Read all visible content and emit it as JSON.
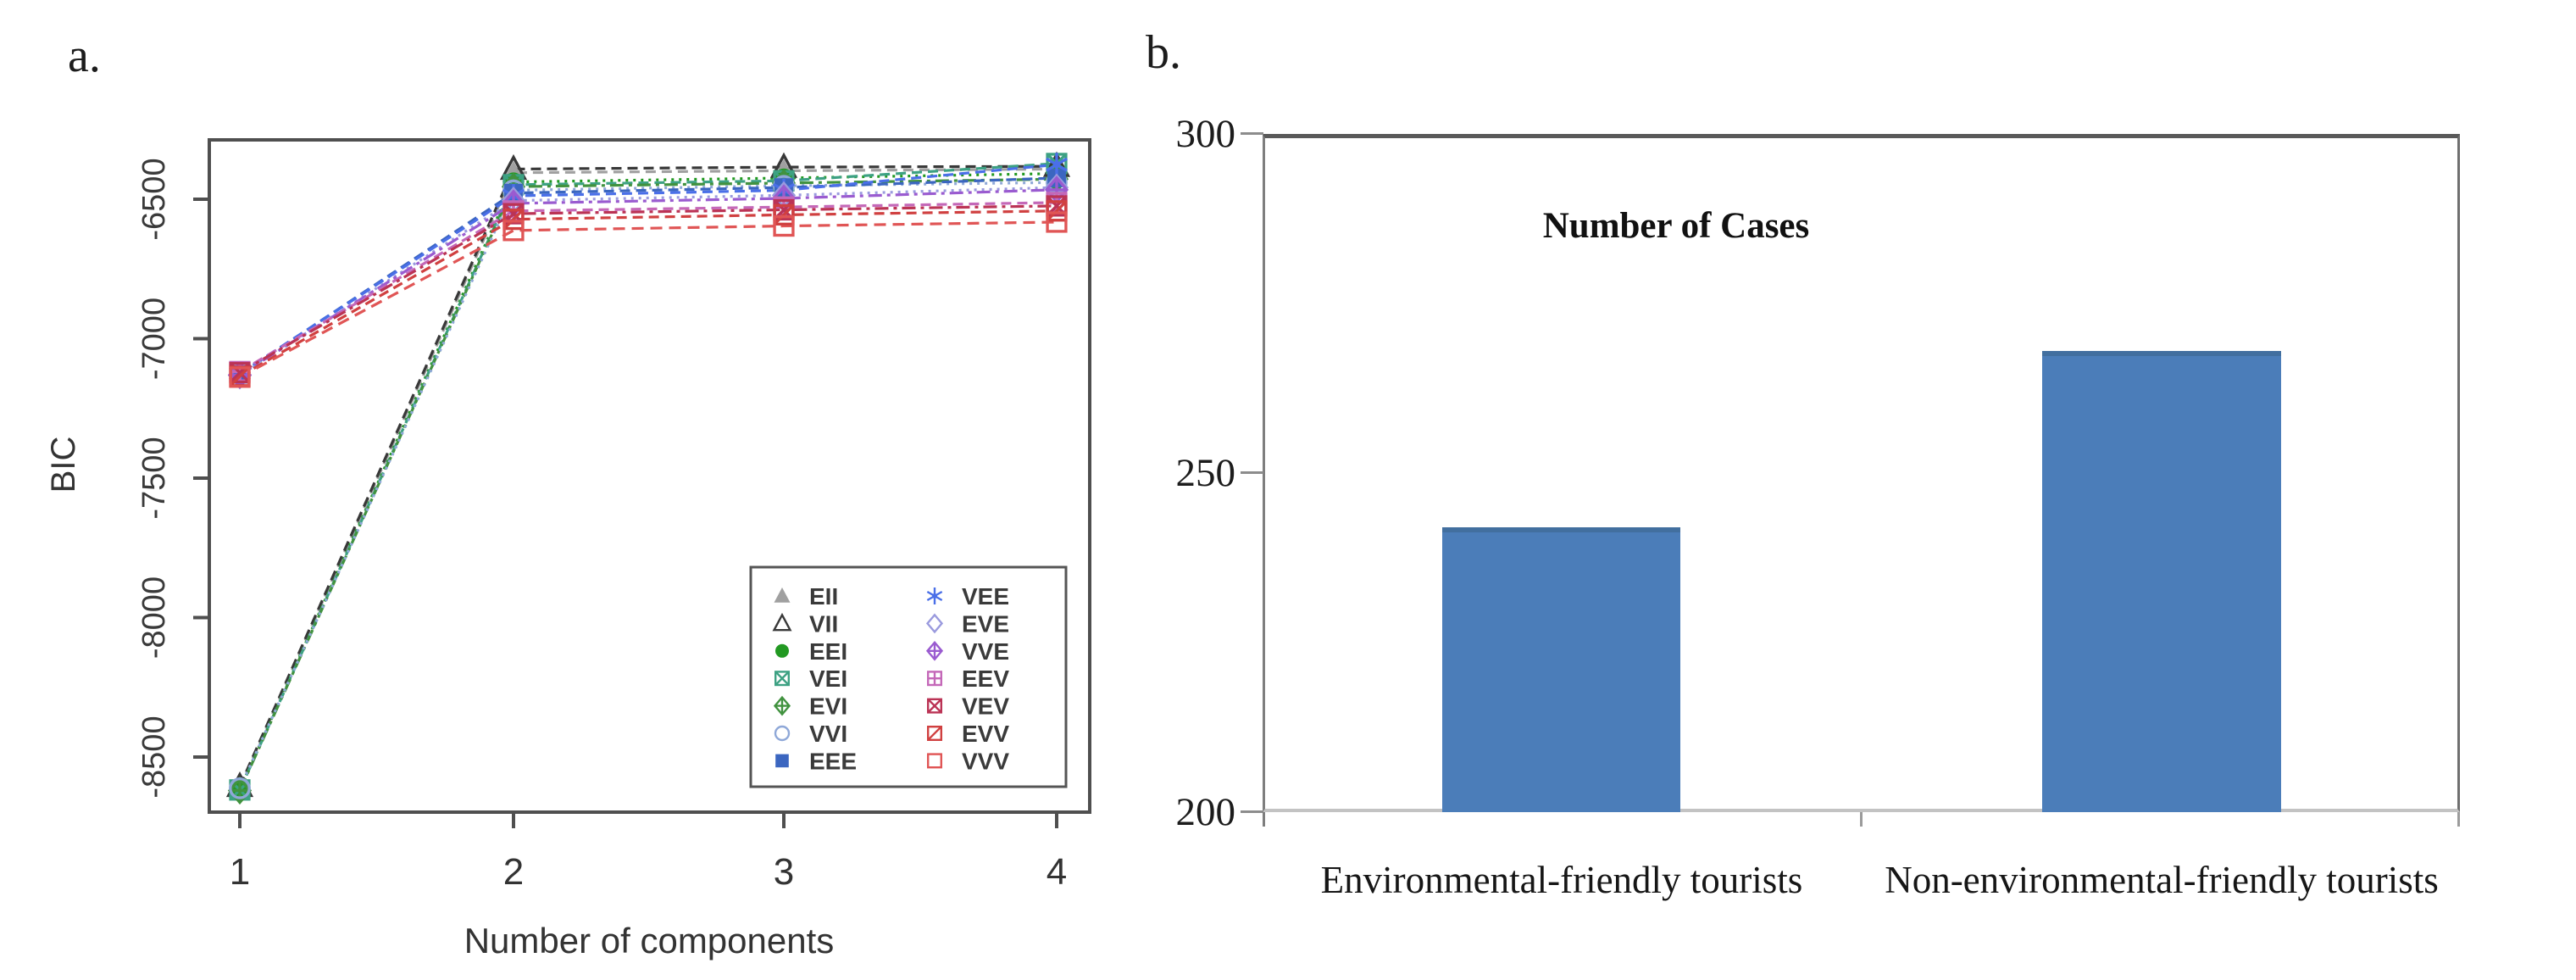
{
  "figure": {
    "background": "#ffffff",
    "panels": [
      "a",
      "b"
    ]
  },
  "chart_data": [
    {
      "id": "bic-model-selection",
      "type": "line",
      "panel_label": "a.",
      "xlabel": "Number of components",
      "ylabel": "BIC",
      "x": [
        1,
        2,
        3,
        4
      ],
      "x_tick_labels": [
        "1",
        "2",
        "3",
        "4"
      ],
      "y_ticks": [
        -6500,
        -7000,
        -7500,
        -8000,
        -8500
      ],
      "ylim": [
        -8712,
        -6287
      ],
      "grid": false,
      "legend_position": "bottom-right",
      "legend_columns": 2,
      "series": [
        {
          "name": "EII",
          "marker": "triangle-filled",
          "color": "#a0a0a0",
          "dash": "12 7",
          "values": [
            -8610,
            -6405,
            -6398,
            -6392
          ]
        },
        {
          "name": "VII",
          "marker": "triangle-open",
          "color": "#383838",
          "dash": "12 7",
          "values": [
            -8605,
            -6392,
            -6385,
            -6382
          ]
        },
        {
          "name": "EEI",
          "marker": "circle-filled",
          "color": "#229922",
          "dash": "3 6",
          "values": [
            -8615,
            -6438,
            -6424,
            -6408
          ]
        },
        {
          "name": "VEI",
          "marker": "square-x",
          "color": "#3da183",
          "dash": "12 7",
          "values": [
            -8618,
            -6448,
            -6434,
            -6372
          ]
        },
        {
          "name": "EVI",
          "marker": "diamond-plus",
          "color": "#41923f",
          "dash": "16 6 4 6",
          "values": [
            -8620,
            -6455,
            -6442,
            -6428
          ]
        },
        {
          "name": "VVI",
          "marker": "circle-open",
          "color": "#8fa8d8",
          "dash": "3 6",
          "values": [
            -8612,
            -6468,
            -6452,
            -6440
          ]
        },
        {
          "name": "EEE",
          "marker": "square-filled",
          "color": "#3b66c0",
          "dash": "12 7",
          "values": [
            -7128,
            -6478,
            -6458,
            -6424
          ]
        },
        {
          "name": "VEE",
          "marker": "star6",
          "color": "#4a6fe8",
          "dash": "12 7",
          "values": [
            -7125,
            -6488,
            -6468,
            -6376
          ]
        },
        {
          "name": "EVE",
          "marker": "diamond-open",
          "color": "#9a9ade",
          "dash": "3 6",
          "values": [
            -7132,
            -6505,
            -6486,
            -6458
          ]
        },
        {
          "name": "VVE",
          "marker": "diamond-plus",
          "color": "#9a5bd0",
          "dash": "16 6 4 6",
          "values": [
            -7130,
            -6515,
            -6497,
            -6466
          ]
        },
        {
          "name": "EEV",
          "marker": "square-plus",
          "color": "#c468b8",
          "dash": "12 7",
          "values": [
            -7118,
            -6542,
            -6528,
            -6512
          ]
        },
        {
          "name": "VEV",
          "marker": "square-x",
          "color": "#bb3355",
          "dash": "16 6 4 6",
          "values": [
            -7122,
            -6552,
            -6538,
            -6524
          ]
        },
        {
          "name": "EVV",
          "marker": "square-diag",
          "color": "#d04040",
          "dash": "12 7",
          "values": [
            -7135,
            -6572,
            -6556,
            -6542
          ]
        },
        {
          "name": "VVV",
          "marker": "square-open",
          "color": "#e05555",
          "dash": "14 8",
          "values": [
            -7138,
            -6612,
            -6596,
            -6582
          ]
        }
      ]
    },
    {
      "id": "number-of-cases",
      "type": "bar",
      "panel_label": "b.",
      "title": "Number of Cases",
      "categories": [
        "Environmental-friendly tourists",
        "Non-environmental-friendly tourists"
      ],
      "values": [
        242,
        268
      ],
      "ylim": [
        200,
        300
      ],
      "y_ticks": [
        300,
        250,
        200
      ],
      "grid": false,
      "bar_color": "#4b7db9",
      "axis_color": "#595959"
    }
  ]
}
